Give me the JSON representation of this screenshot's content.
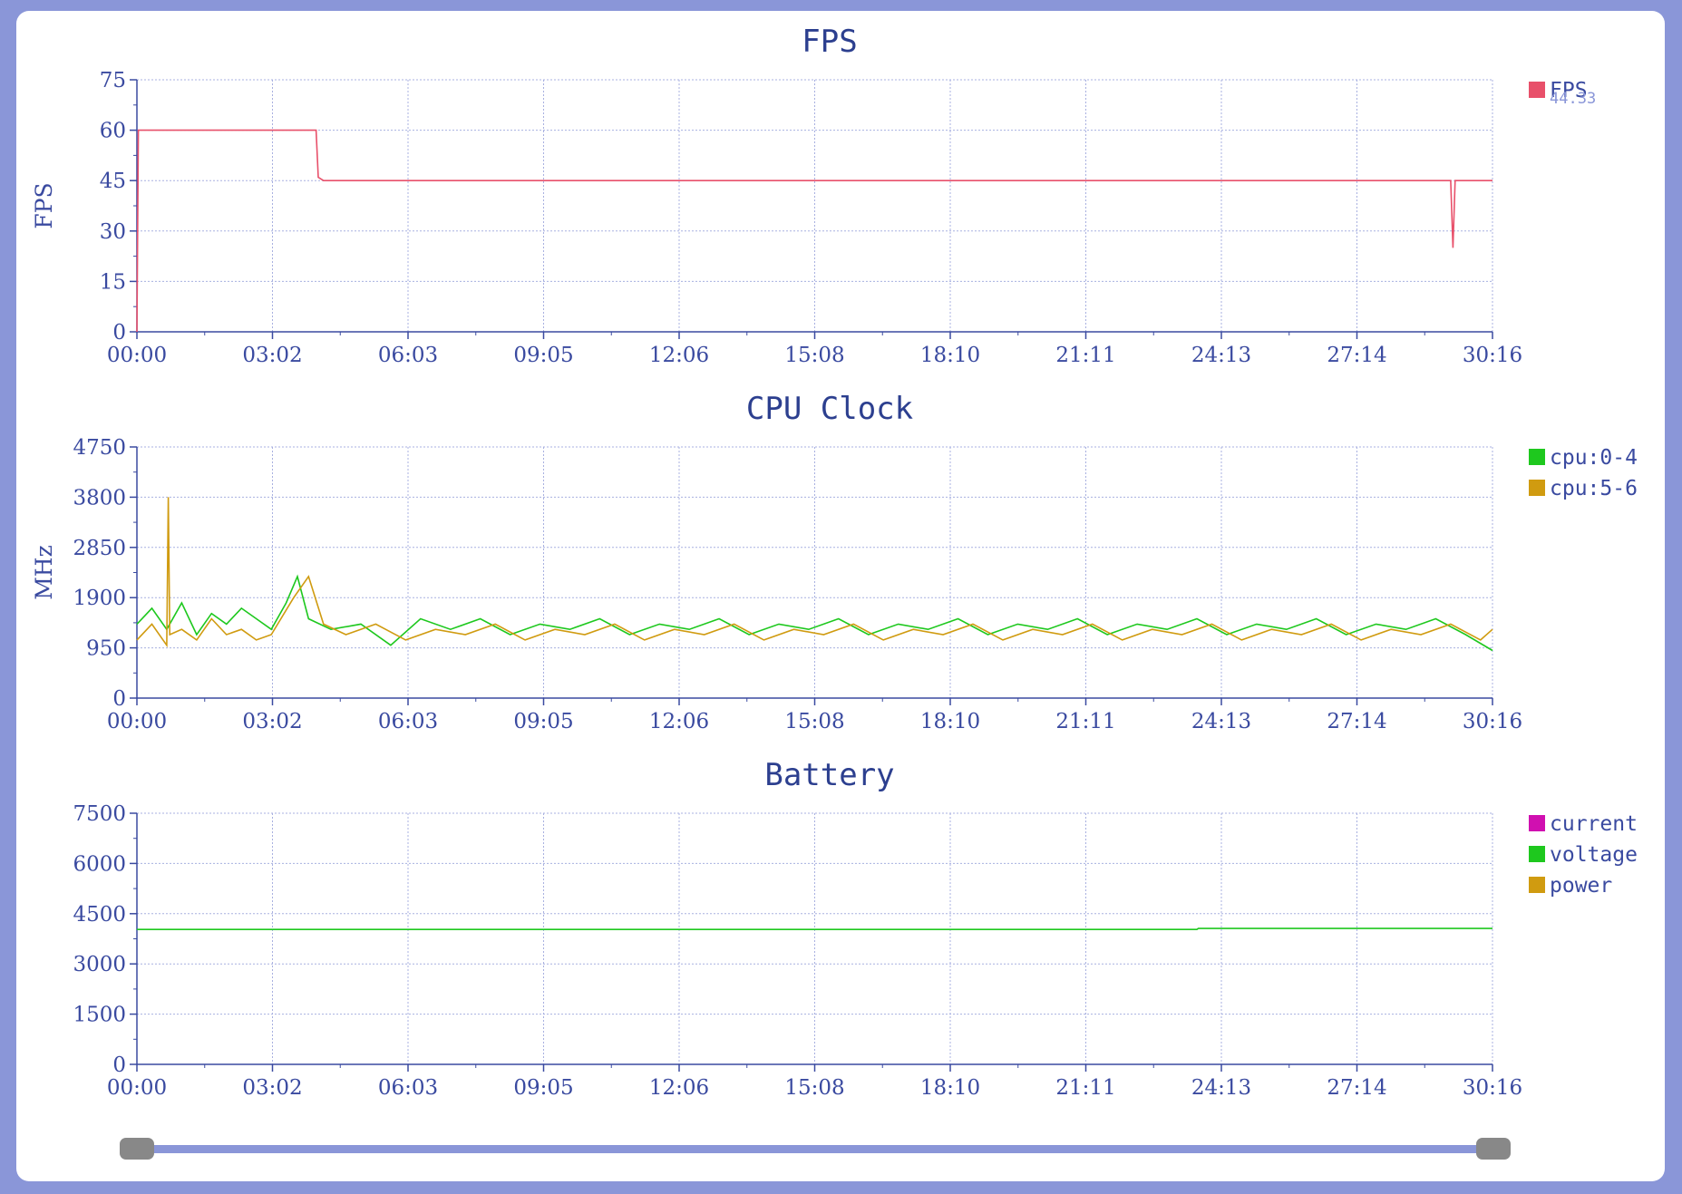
{
  "colors": {
    "axis": "#3a4aa0",
    "grid": "#a8b0e0",
    "title": "#2c3f8f",
    "track": "#8a96d8",
    "handle": "#888888"
  },
  "chart_data": [
    {
      "type": "line",
      "title": "FPS",
      "ylabel": "FPS",
      "xlabel": "",
      "ylim": [
        0,
        75
      ],
      "yticks": [
        "0",
        "15",
        "30",
        "45",
        "60",
        "75"
      ],
      "xticks": [
        "00:00",
        "03:02",
        "06:03",
        "09:05",
        "12:06",
        "15:08",
        "18:10",
        "21:11",
        "24:13",
        "27:14",
        "30:16"
      ],
      "grid": true,
      "legend_position": "right",
      "series": [
        {
          "name": "FPS",
          "color": "#e8506a",
          "legend_value": "44.33",
          "points": [
            [
              0,
              0
            ],
            [
              2,
              60
            ],
            [
              60,
              60
            ],
            [
              120,
              60
            ],
            [
              180,
              60
            ],
            [
              240,
              60
            ],
            [
              243,
              46
            ],
            [
              250,
              45
            ],
            [
              400,
              45
            ],
            [
              600,
              45
            ],
            [
              800,
              45
            ],
            [
              1000,
              45
            ],
            [
              1200,
              45
            ],
            [
              1400,
              45
            ],
            [
              1600,
              45
            ],
            [
              1700,
              45
            ],
            [
              1760,
              45
            ],
            [
              1763,
              25
            ],
            [
              1766,
              45
            ],
            [
              1780,
              45
            ],
            [
              1816,
              45
            ]
          ]
        }
      ]
    },
    {
      "type": "line",
      "title": "CPU Clock",
      "ylabel": "MHz",
      "xlabel": "",
      "ylim": [
        0,
        4750
      ],
      "yticks": [
        "0",
        "950",
        "1900",
        "2850",
        "3800",
        "4750"
      ],
      "xticks": [
        "00:00",
        "03:02",
        "06:03",
        "09:05",
        "12:06",
        "15:08",
        "18:10",
        "21:11",
        "24:13",
        "27:14",
        "30:16"
      ],
      "grid": true,
      "legend_position": "right",
      "series": [
        {
          "name": "cpu:0-4",
          "color": "#1ec81e",
          "points": [
            [
              0,
              1400
            ],
            [
              20,
              1700
            ],
            [
              40,
              1300
            ],
            [
              60,
              1800
            ],
            [
              80,
              1200
            ],
            [
              100,
              1600
            ],
            [
              120,
              1400
            ],
            [
              140,
              1700
            ],
            [
              160,
              1500
            ],
            [
              180,
              1300
            ],
            [
              200,
              1800
            ],
            [
              215,
              2300
            ],
            [
              230,
              1500
            ],
            [
              260,
              1300
            ],
            [
              300,
              1400
            ],
            [
              340,
              1000
            ],
            [
              380,
              1500
            ],
            [
              420,
              1300
            ],
            [
              460,
              1500
            ],
            [
              500,
              1200
            ],
            [
              540,
              1400
            ],
            [
              580,
              1300
            ],
            [
              620,
              1500
            ],
            [
              660,
              1200
            ],
            [
              700,
              1400
            ],
            [
              740,
              1300
            ],
            [
              780,
              1500
            ],
            [
              820,
              1200
            ],
            [
              860,
              1400
            ],
            [
              900,
              1300
            ],
            [
              940,
              1500
            ],
            [
              980,
              1200
            ],
            [
              1020,
              1400
            ],
            [
              1060,
              1300
            ],
            [
              1100,
              1500
            ],
            [
              1140,
              1200
            ],
            [
              1180,
              1400
            ],
            [
              1220,
              1300
            ],
            [
              1260,
              1500
            ],
            [
              1300,
              1200
            ],
            [
              1340,
              1400
            ],
            [
              1380,
              1300
            ],
            [
              1420,
              1500
            ],
            [
              1460,
              1200
            ],
            [
              1500,
              1400
            ],
            [
              1540,
              1300
            ],
            [
              1580,
              1500
            ],
            [
              1620,
              1200
            ],
            [
              1660,
              1400
            ],
            [
              1700,
              1300
            ],
            [
              1740,
              1500
            ],
            [
              1780,
              1200
            ],
            [
              1816,
              900
            ]
          ]
        },
        {
          "name": "cpu:5-6",
          "color": "#d09b10",
          "points": [
            [
              0,
              1100
            ],
            [
              20,
              1400
            ],
            [
              40,
              1000
            ],
            [
              42,
              3800
            ],
            [
              44,
              1200
            ],
            [
              60,
              1300
            ],
            [
              80,
              1100
            ],
            [
              100,
              1500
            ],
            [
              120,
              1200
            ],
            [
              140,
              1300
            ],
            [
              160,
              1100
            ],
            [
              180,
              1200
            ],
            [
              210,
              1900
            ],
            [
              230,
              2300
            ],
            [
              250,
              1400
            ],
            [
              280,
              1200
            ],
            [
              320,
              1400
            ],
            [
              360,
              1100
            ],
            [
              400,
              1300
            ],
            [
              440,
              1200
            ],
            [
              480,
              1400
            ],
            [
              520,
              1100
            ],
            [
              560,
              1300
            ],
            [
              600,
              1200
            ],
            [
              640,
              1400
            ],
            [
              680,
              1100
            ],
            [
              720,
              1300
            ],
            [
              760,
              1200
            ],
            [
              800,
              1400
            ],
            [
              840,
              1100
            ],
            [
              880,
              1300
            ],
            [
              920,
              1200
            ],
            [
              960,
              1400
            ],
            [
              1000,
              1100
            ],
            [
              1040,
              1300
            ],
            [
              1080,
              1200
            ],
            [
              1120,
              1400
            ],
            [
              1160,
              1100
            ],
            [
              1200,
              1300
            ],
            [
              1240,
              1200
            ],
            [
              1280,
              1400
            ],
            [
              1320,
              1100
            ],
            [
              1360,
              1300
            ],
            [
              1400,
              1200
            ],
            [
              1440,
              1400
            ],
            [
              1480,
              1100
            ],
            [
              1520,
              1300
            ],
            [
              1560,
              1200
            ],
            [
              1600,
              1400
            ],
            [
              1640,
              1100
            ],
            [
              1680,
              1300
            ],
            [
              1720,
              1200
            ],
            [
              1760,
              1400
            ],
            [
              1800,
              1100
            ],
            [
              1816,
              1300
            ]
          ]
        }
      ]
    },
    {
      "type": "line",
      "title": "Battery",
      "ylabel": "",
      "xlabel": "",
      "ylim": [
        0,
        7500
      ],
      "yticks": [
        "0",
        "1500",
        "3000",
        "4500",
        "6000",
        "7500"
      ],
      "xticks": [
        "00:00",
        "03:02",
        "06:03",
        "09:05",
        "12:06",
        "15:08",
        "18:10",
        "21:11",
        "24:13",
        "27:14",
        "30:16"
      ],
      "grid": true,
      "legend_position": "right",
      "series": [
        {
          "name": "current",
          "color": "#d010b0",
          "points": []
        },
        {
          "name": "voltage",
          "color": "#1ec81e",
          "points": [
            [
              0,
              4030
            ],
            [
              1420,
              4030
            ],
            [
              1422,
              4060
            ],
            [
              1816,
              4060
            ]
          ]
        },
        {
          "name": "power",
          "color": "#d09b10",
          "points": []
        }
      ]
    }
  ]
}
